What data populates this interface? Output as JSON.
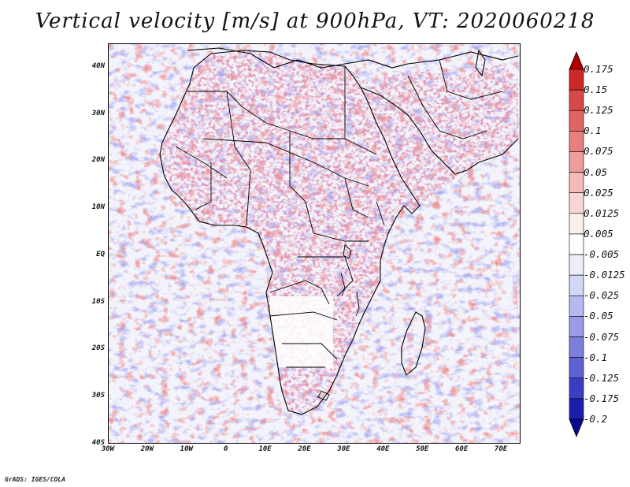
{
  "title": "Vertical velocity [m/s] at 900hPa, VT: 2020060218",
  "credit": "GrADS: IGES/COLA",
  "map": {
    "lat_ticks": [
      "40N",
      "30N",
      "20N",
      "10N",
      "EQ",
      "10S",
      "20S",
      "30S",
      "40S"
    ],
    "lon_ticks": [
      "30W",
      "20W",
      "10W",
      "0",
      "10E",
      "20E",
      "30E",
      "40E",
      "50E",
      "60E",
      "70E"
    ],
    "lat_range": [
      -40,
      45
    ],
    "lon_range": [
      -30,
      75
    ]
  },
  "colorbar": {
    "levels": [
      "0.175",
      "0.15",
      "0.125",
      "0.1",
      "0.075",
      "0.05",
      "0.025",
      "0.0125",
      "0.005",
      "-0.005",
      "-0.0125",
      "-0.025",
      "-0.05",
      "-0.075",
      "-0.1",
      "-0.125",
      "-0.175",
      "-0.2"
    ],
    "colors": [
      "#b00000",
      "#cc2a2a",
      "#d84848",
      "#e06464",
      "#e88080",
      "#ee9c9c",
      "#f4baba",
      "#f9d6d6",
      "#fdeeee",
      "#ffffff",
      "#ecedfb",
      "#d4d6f6",
      "#b6b9ee",
      "#9a9de6",
      "#7c80dc",
      "#5e62d2",
      "#3a3ec2",
      "#1a1ea8",
      "#0a0a90"
    ]
  }
}
